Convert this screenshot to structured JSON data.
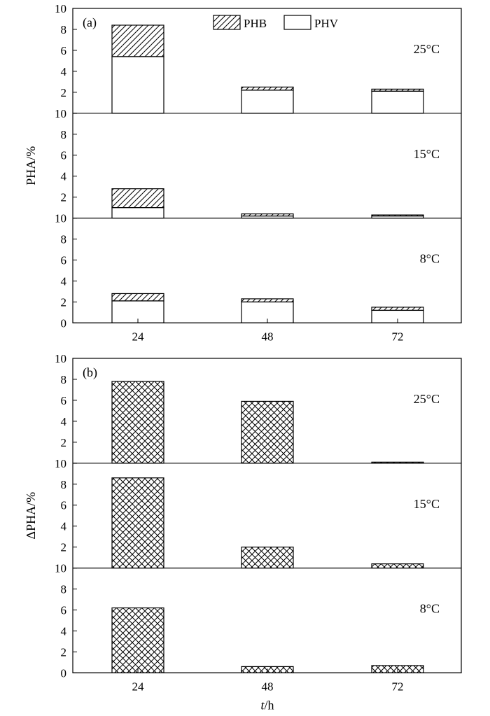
{
  "chart_data": [
    {
      "panel_label": "(a)",
      "type": "bar",
      "stacked": true,
      "ylabel": "PHA/%",
      "xlabel": "",
      "x_ticks": [
        "24",
        "48",
        "72"
      ],
      "y_tick_labels": [
        "0",
        "2",
        "4",
        "6",
        "8",
        "10"
      ],
      "ylim": [
        0,
        10
      ],
      "legend": [
        {
          "name": "PHB",
          "pattern": "diagonal-hatch"
        },
        {
          "name": "PHV",
          "pattern": "blank"
        }
      ],
      "subplots": [
        {
          "label": "25°C",
          "categories": [
            "24",
            "48",
            "72"
          ],
          "series": [
            {
              "name": "PHV",
              "values": [
                5.4,
                2.2,
                2.1
              ]
            },
            {
              "name": "PHB",
              "values": [
                3.0,
                0.3,
                0.2
              ]
            }
          ]
        },
        {
          "label": "15°C",
          "categories": [
            "24",
            "48",
            "72"
          ],
          "series": [
            {
              "name": "PHV",
              "values": [
                1.0,
                0.2,
                0.2
              ]
            },
            {
              "name": "PHB",
              "values": [
                1.8,
                0.2,
                0.1
              ]
            }
          ]
        },
        {
          "label": "8°C",
          "categories": [
            "24",
            "48",
            "72"
          ],
          "series": [
            {
              "name": "PHV",
              "values": [
                2.1,
                2.0,
                1.2
              ]
            },
            {
              "name": "PHB",
              "values": [
                0.7,
                0.3,
                0.3
              ]
            }
          ]
        }
      ]
    },
    {
      "panel_label": "(b)",
      "type": "bar",
      "stacked": false,
      "ylabel": "ΔPHA/%",
      "xlabel": "t/h",
      "x_ticks": [
        "24",
        "48",
        "72"
      ],
      "y_tick_labels": [
        "0",
        "2",
        "4",
        "6",
        "8",
        "10"
      ],
      "ylim": [
        0,
        10
      ],
      "subplots": [
        {
          "label": "25°C",
          "categories": [
            "24",
            "48",
            "72"
          ],
          "values": [
            7.8,
            5.9,
            0.1
          ]
        },
        {
          "label": "15°C",
          "categories": [
            "24",
            "48",
            "72"
          ],
          "values": [
            8.6,
            2.0,
            0.4
          ]
        },
        {
          "label": "8°C",
          "categories": [
            "24",
            "48",
            "72"
          ],
          "values": [
            6.2,
            0.6,
            0.7
          ]
        }
      ]
    }
  ]
}
